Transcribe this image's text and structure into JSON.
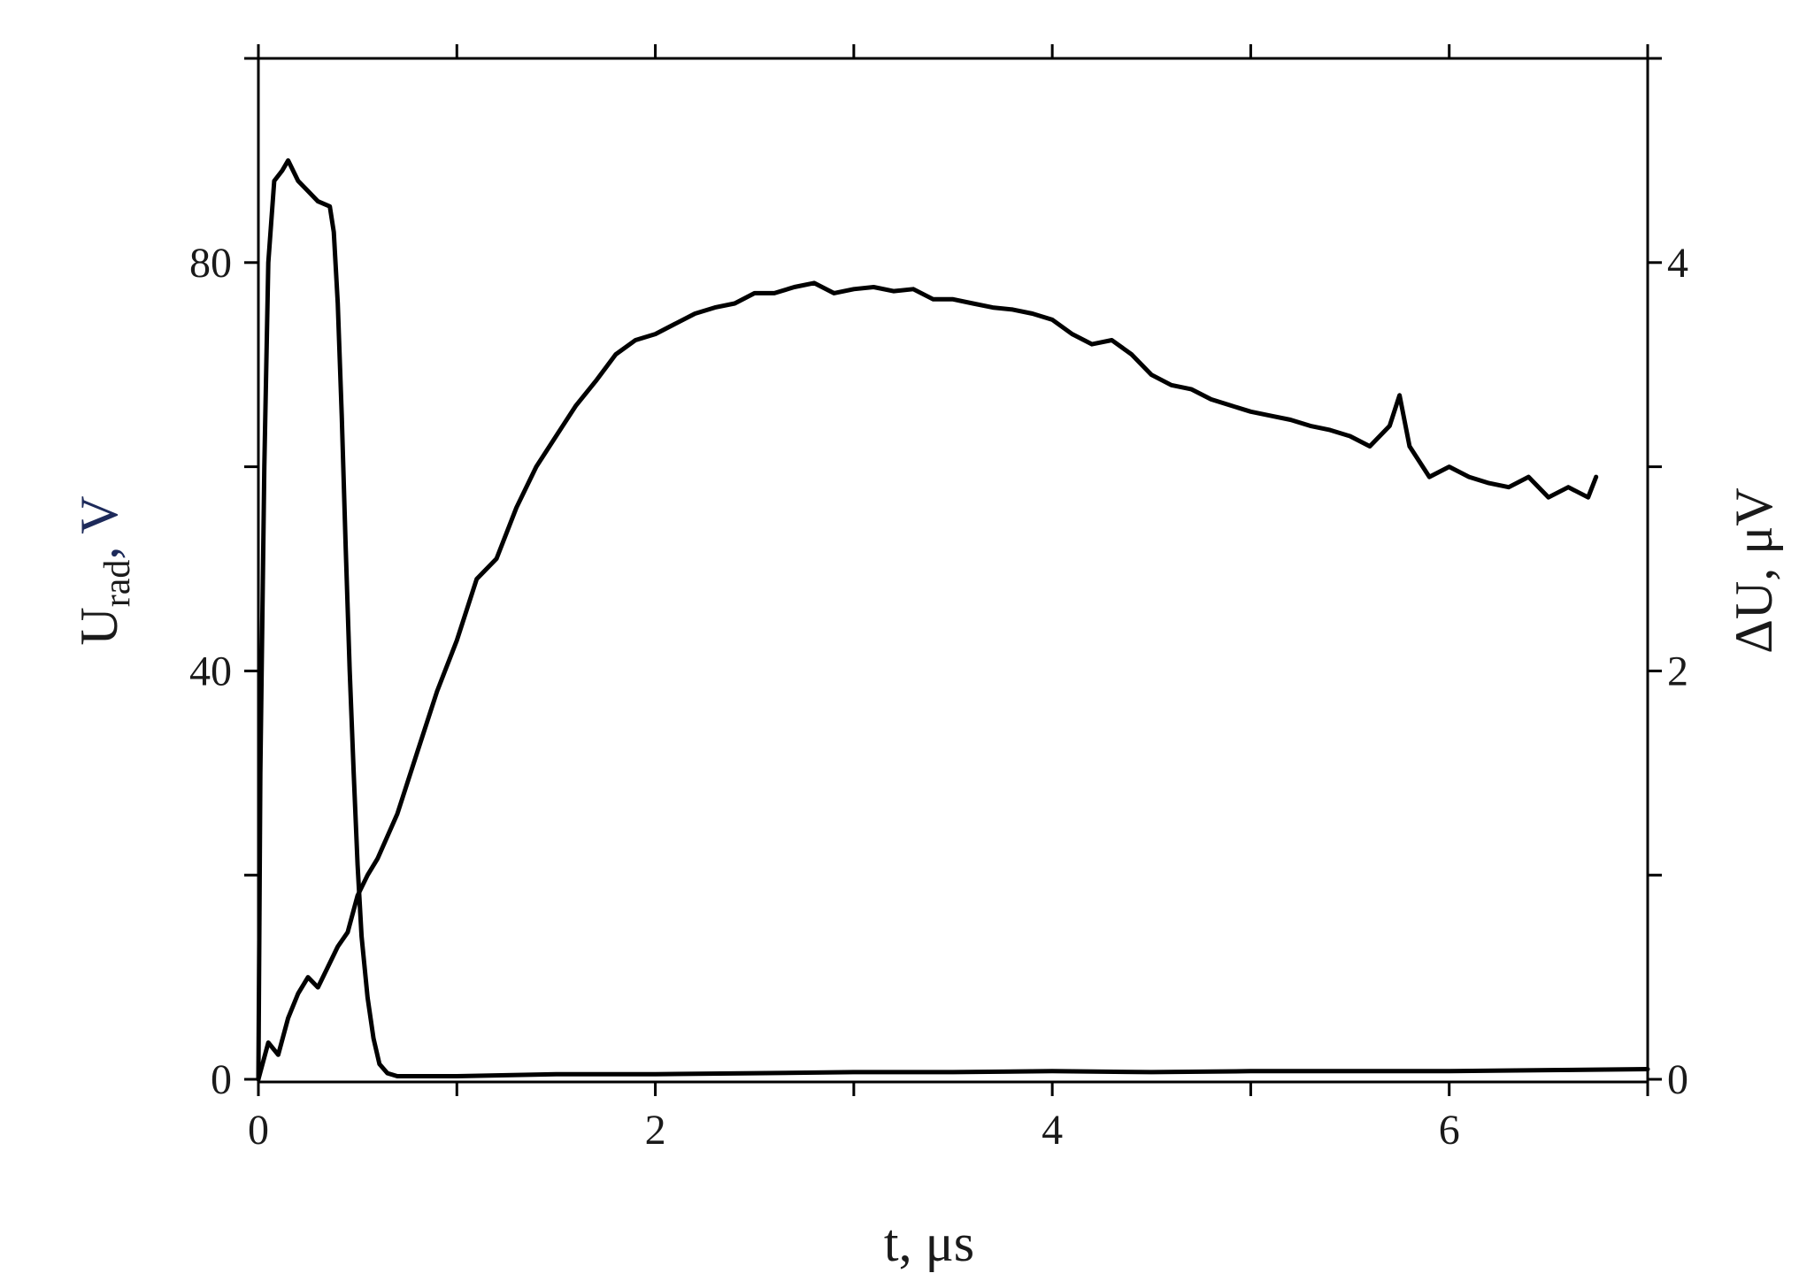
{
  "chart_data": {
    "type": "line",
    "title": "",
    "x_axis": {
      "label_main": "t",
      "label_unit": ", μs",
      "range": [
        0,
        7
      ],
      "ticks": [
        0,
        2,
        4,
        6
      ],
      "tick_labels": [
        "0",
        "2",
        "4",
        "6"
      ],
      "minor_ticks": [
        1,
        3,
        5,
        7
      ]
    },
    "y_left": {
      "label_main": "U",
      "label_sub": "rad",
      "label_unit": ", V",
      "range": [
        0,
        100
      ],
      "ticks": [
        0,
        40,
        80
      ],
      "tick_labels": [
        "0",
        "40",
        "80"
      ],
      "minor_ticks": [
        20,
        60,
        100
      ]
    },
    "y_right": {
      "label": "ΔU, μV",
      "range": [
        0,
        5
      ],
      "ticks": [
        0,
        2,
        4
      ],
      "tick_labels": [
        "0",
        "2",
        "4"
      ],
      "minor_ticks": [
        1,
        3,
        5
      ]
    },
    "grid": false,
    "legend": "none",
    "colors": {
      "line": "#000000",
      "axis": "#000000",
      "axis_title_accent": "#1d2a5a"
    },
    "series": [
      {
        "axis": "left",
        "x": [
          0,
          0.01,
          0.03,
          0.05,
          0.08,
          0.12,
          0.15,
          0.2,
          0.25,
          0.3,
          0.36,
          0.38,
          0.4,
          0.42,
          0.44,
          0.46,
          0.48,
          0.5,
          0.52,
          0.55,
          0.58,
          0.61,
          0.65,
          0.7,
          0.8,
          1,
          1.5,
          2,
          2.5,
          3,
          3.5,
          4,
          4.5,
          5,
          5.5,
          6,
          6.5,
          7
        ],
        "y": [
          0,
          30,
          60,
          80,
          88,
          89,
          90,
          88,
          87,
          86,
          85.5,
          83,
          76,
          65,
          52,
          40,
          30,
          21,
          14,
          8,
          4,
          1.5,
          0.6,
          0.3,
          0.3,
          0.3,
          0.5,
          0.5,
          0.6,
          0.7,
          0.7,
          0.8,
          0.7,
          0.8,
          0.8,
          0.8,
          0.9,
          1.0
        ]
      },
      {
        "axis": "right",
        "x": [
          0,
          0.05,
          0.1,
          0.15,
          0.2,
          0.25,
          0.3,
          0.35,
          0.4,
          0.45,
          0.5,
          0.55,
          0.6,
          0.7,
          0.8,
          0.9,
          1.0,
          1.1,
          1.2,
          1.3,
          1.4,
          1.5,
          1.6,
          1.7,
          1.8,
          1.9,
          2.0,
          2.1,
          2.2,
          2.3,
          2.4,
          2.5,
          2.6,
          2.7,
          2.8,
          2.9,
          3.0,
          3.1,
          3.2,
          3.3,
          3.4,
          3.5,
          3.6,
          3.7,
          3.8,
          3.9,
          4.0,
          4.1,
          4.2,
          4.3,
          4.4,
          4.5,
          4.6,
          4.7,
          4.8,
          4.9,
          5.0,
          5.1,
          5.2,
          5.3,
          5.4,
          5.5,
          5.6,
          5.7,
          5.75,
          5.8,
          5.9,
          6.0,
          6.1,
          6.2,
          6.3,
          6.4,
          6.5,
          6.6,
          6.7,
          6.74
        ],
        "y": [
          0,
          0.18,
          0.12,
          0.3,
          0.42,
          0.5,
          0.45,
          0.55,
          0.65,
          0.72,
          0.9,
          1.0,
          1.08,
          1.3,
          1.6,
          1.9,
          2.15,
          2.45,
          2.55,
          2.8,
          3.0,
          3.15,
          3.3,
          3.42,
          3.55,
          3.62,
          3.65,
          3.7,
          3.75,
          3.78,
          3.8,
          3.85,
          3.85,
          3.88,
          3.9,
          3.85,
          3.87,
          3.88,
          3.86,
          3.87,
          3.82,
          3.82,
          3.8,
          3.78,
          3.77,
          3.75,
          3.72,
          3.65,
          3.6,
          3.62,
          3.55,
          3.45,
          3.4,
          3.38,
          3.33,
          3.3,
          3.27,
          3.25,
          3.23,
          3.2,
          3.18,
          3.15,
          3.1,
          3.2,
          3.35,
          3.1,
          2.95,
          3.0,
          2.95,
          2.92,
          2.9,
          2.95,
          2.85,
          2.9,
          2.85,
          2.95
        ]
      }
    ]
  }
}
